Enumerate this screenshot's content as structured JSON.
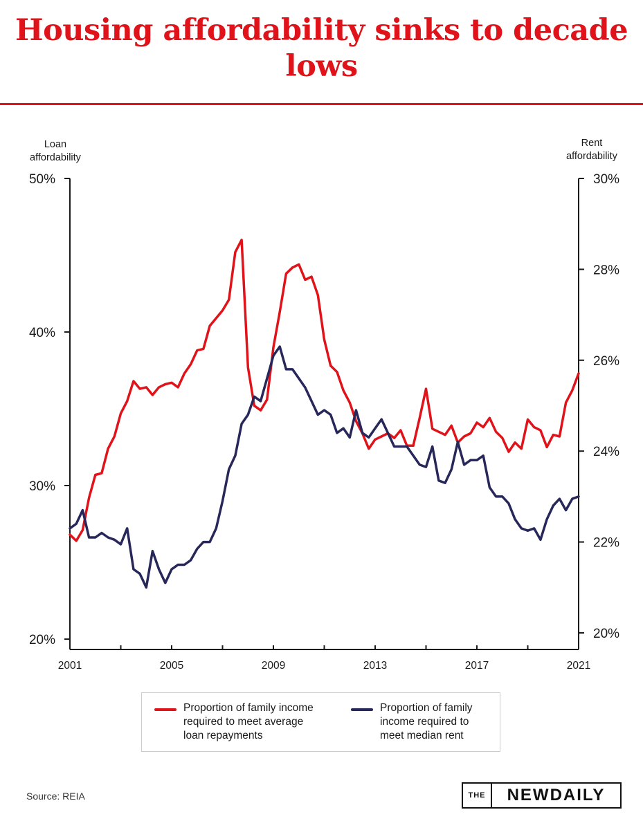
{
  "chart_data": {
    "type": "line",
    "title": "Housing affordability sinks to decade lows",
    "left_axis_label": "Loan\naffordability",
    "right_axis_label": "Rent\naffordability",
    "left_ylim": [
      20,
      50
    ],
    "right_ylim": [
      20,
      30
    ],
    "left_ticks": [
      "50%",
      "40%",
      "30%",
      "20%"
    ],
    "left_tick_values": [
      50,
      40,
      30,
      20
    ],
    "right_ticks": [
      "30%",
      "28%",
      "26%",
      "24%",
      "22%",
      "20%"
    ],
    "right_tick_values": [
      30,
      28,
      26,
      24,
      22,
      20
    ],
    "x_ticks": [
      "2001",
      "2005",
      "2009",
      "2013",
      "2017",
      "2021"
    ],
    "x_tick_values": [
      2001,
      2005,
      2009,
      2013,
      2017,
      2021
    ],
    "xlim": [
      2001,
      2021
    ],
    "grid": false,
    "series": [
      {
        "name": "Proportion of family income required to meet average loan repayments",
        "axis": "left",
        "color": "#e0131a",
        "x": [
          2001.0,
          2001.25,
          2001.5,
          2001.75,
          2002.0,
          2002.25,
          2002.5,
          2002.75,
          2003.0,
          2003.25,
          2003.5,
          2003.75,
          2004.0,
          2004.25,
          2004.5,
          2004.75,
          2005.0,
          2005.25,
          2005.5,
          2005.75,
          2006.0,
          2006.25,
          2006.5,
          2006.75,
          2007.0,
          2007.25,
          2007.5,
          2007.75,
          2008.0,
          2008.25,
          2008.5,
          2008.75,
          2009.0,
          2009.25,
          2009.5,
          2009.75,
          2010.0,
          2010.25,
          2010.5,
          2010.75,
          2011.0,
          2011.25,
          2011.5,
          2011.75,
          2012.0,
          2012.25,
          2012.5,
          2012.75,
          2013.0,
          2013.25,
          2013.5,
          2013.75,
          2014.0,
          2014.25,
          2014.5,
          2014.75,
          2015.0,
          2015.25,
          2015.5,
          2015.75,
          2016.0,
          2016.25,
          2016.5,
          2016.75,
          2017.0,
          2017.25,
          2017.5,
          2017.75,
          2018.0,
          2018.25,
          2018.5,
          2018.75,
          2019.0,
          2019.25,
          2019.5,
          2019.75,
          2020.0,
          2020.25,
          2020.5,
          2020.75,
          2021.0
        ],
        "values": [
          26.8,
          26.4,
          27.1,
          29.2,
          30.7,
          30.8,
          32.4,
          33.2,
          34.7,
          35.5,
          36.8,
          36.3,
          36.4,
          35.9,
          36.4,
          36.6,
          36.7,
          36.4,
          37.3,
          37.9,
          38.8,
          38.9,
          40.4,
          40.9,
          41.4,
          42.1,
          45.2,
          46.0,
          37.7,
          35.2,
          34.9,
          35.6,
          39.0,
          41.3,
          43.8,
          44.2,
          44.4,
          43.4,
          43.6,
          42.4,
          39.5,
          37.8,
          37.4,
          36.2,
          35.4,
          34.2,
          33.4,
          32.4,
          33.0,
          33.2,
          33.4,
          33.1,
          33.6,
          32.6,
          32.6,
          34.4,
          36.3,
          33.7,
          33.5,
          33.3,
          33.9,
          32.8,
          33.2,
          33.4,
          34.1,
          33.8,
          34.4,
          33.5,
          33.1,
          32.2,
          32.8,
          32.4,
          34.3,
          33.8,
          33.6,
          32.5,
          33.3,
          33.2,
          35.4,
          36.2,
          37.3
        ]
      },
      {
        "name": "Proportion of family income required to meet median rent",
        "axis": "right",
        "color": "#27275a",
        "x": [
          2001.0,
          2001.25,
          2001.5,
          2001.75,
          2002.0,
          2002.25,
          2002.5,
          2002.75,
          2003.0,
          2003.25,
          2003.5,
          2003.75,
          2004.0,
          2004.25,
          2004.5,
          2004.75,
          2005.0,
          2005.25,
          2005.5,
          2005.75,
          2006.0,
          2006.25,
          2006.5,
          2006.75,
          2007.0,
          2007.25,
          2007.5,
          2007.75,
          2008.0,
          2008.25,
          2008.5,
          2008.75,
          2009.0,
          2009.25,
          2009.5,
          2009.75,
          2010.0,
          2010.25,
          2010.5,
          2010.75,
          2011.0,
          2011.25,
          2011.5,
          2011.75,
          2012.0,
          2012.25,
          2012.5,
          2012.75,
          2013.0,
          2013.25,
          2013.5,
          2013.75,
          2014.0,
          2014.25,
          2014.5,
          2014.75,
          2015.0,
          2015.25,
          2015.5,
          2015.75,
          2016.0,
          2016.25,
          2016.5,
          2016.75,
          2017.0,
          2017.25,
          2017.5,
          2017.75,
          2018.0,
          2018.25,
          2018.5,
          2018.75,
          2019.0,
          2019.25,
          2019.5,
          2019.75,
          2020.0,
          2020.25,
          2020.5,
          2020.75,
          2021.0
        ],
        "values": [
          22.3,
          22.4,
          22.7,
          22.1,
          22.1,
          22.2,
          22.1,
          22.05,
          21.95,
          22.3,
          21.4,
          21.3,
          21.0,
          21.8,
          21.4,
          21.1,
          21.4,
          21.5,
          21.5,
          21.6,
          21.85,
          22.0,
          22.0,
          22.3,
          22.9,
          23.6,
          23.9,
          24.6,
          24.8,
          25.2,
          25.1,
          25.6,
          26.1,
          26.3,
          25.8,
          25.8,
          25.6,
          25.4,
          25.1,
          24.8,
          24.9,
          24.8,
          24.4,
          24.5,
          24.3,
          24.9,
          24.4,
          24.3,
          24.5,
          24.7,
          24.4,
          24.1,
          24.1,
          24.1,
          23.9,
          23.7,
          23.65,
          24.1,
          23.35,
          23.3,
          23.6,
          24.2,
          23.7,
          23.8,
          23.8,
          23.9,
          23.2,
          23.0,
          23.0,
          22.85,
          22.5,
          22.3,
          22.25,
          22.3,
          22.05,
          22.5,
          22.8,
          22.95,
          22.7,
          22.95,
          23.0
        ]
      }
    ],
    "legend_placement": "bottom-center"
  },
  "legend": {
    "loan_label": "Proportion of family income\nrequired to meet average\nloan repayments",
    "rent_label": "Proportion of family\nincome required to\nmeet median rent"
  },
  "footer": {
    "source": "Source: REIA",
    "logo_the": "THE",
    "logo_name": "NEWDAILY"
  }
}
